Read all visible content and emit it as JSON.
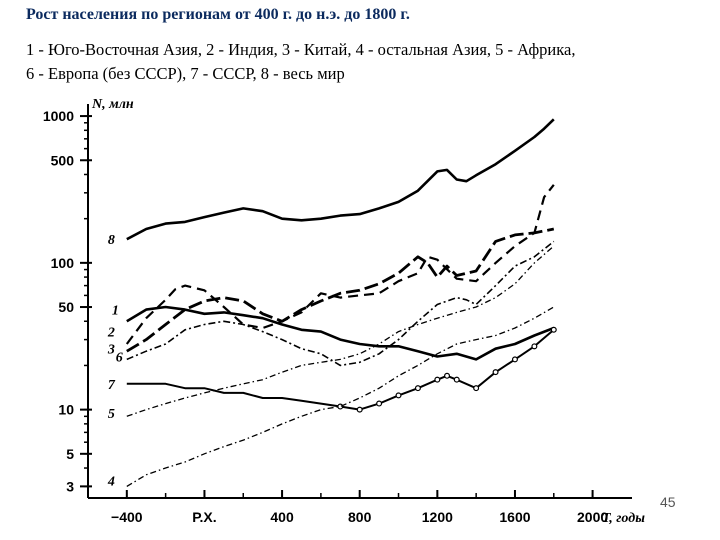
{
  "title": "Рост населения по регионам от 400 г. до н.э. до 1800 г.",
  "legend_lines": [
    "1 - Юго-Восточная Азия, 2 - Индия, 3 - Китай, 4 - остальная Азия, 5 - Африка,",
    "6 - Европа (без СССР), 7 - СССР, 8 - весь мир"
  ],
  "slide_number": "45",
  "chart_data": {
    "type": "line",
    "ylabel": "N, млн",
    "xlabel": "T, годы",
    "y_scale": "log",
    "ylim": [
      2.5,
      1100
    ],
    "xlim": [
      -600,
      2100
    ],
    "y_ticks": [
      {
        "value": 1000,
        "label": "1000"
      },
      {
        "value": 500,
        "label": "500"
      },
      {
        "value": 100,
        "label": "100"
      },
      {
        "value": 50,
        "label": "50"
      },
      {
        "value": 10,
        "label": "10"
      },
      {
        "value": 5,
        "label": "5"
      },
      {
        "value": 3,
        "label": "3"
      }
    ],
    "x_ticks": [
      {
        "value": -400,
        "label": "−400"
      },
      {
        "value": 0,
        "label": "Р.Х."
      },
      {
        "value": 400,
        "label": "400"
      },
      {
        "value": 800,
        "label": "800"
      },
      {
        "value": 1200,
        "label": "1200"
      },
      {
        "value": 1600,
        "label": "1600"
      },
      {
        "value": 2000,
        "label": "2000"
      }
    ],
    "series": [
      {
        "name": "8",
        "label_at": [
          -420,
          145
        ],
        "style": "solid-thick",
        "points": [
          [
            -400,
            145
          ],
          [
            -300,
            170
          ],
          [
            -200,
            185
          ],
          [
            -100,
            190
          ],
          [
            0,
            205
          ],
          [
            100,
            220
          ],
          [
            200,
            235
          ],
          [
            300,
            225
          ],
          [
            400,
            200
          ],
          [
            500,
            195
          ],
          [
            600,
            200
          ],
          [
            700,
            210
          ],
          [
            800,
            215
          ],
          [
            900,
            235
          ],
          [
            1000,
            260
          ],
          [
            1100,
            310
          ],
          [
            1200,
            420
          ],
          [
            1250,
            430
          ],
          [
            1300,
            370
          ],
          [
            1350,
            360
          ],
          [
            1400,
            395
          ],
          [
            1500,
            470
          ],
          [
            1600,
            580
          ],
          [
            1700,
            720
          ],
          [
            1750,
            820
          ],
          [
            1800,
            950
          ]
        ]
      },
      {
        "name": "1",
        "label_at": [
          -400,
          48
        ],
        "style": "solid-thick",
        "points": [
          [
            -400,
            40
          ],
          [
            -300,
            48
          ],
          [
            -200,
            50
          ],
          [
            -100,
            48
          ],
          [
            0,
            45
          ],
          [
            100,
            46
          ],
          [
            200,
            44
          ],
          [
            300,
            42
          ],
          [
            400,
            38
          ],
          [
            500,
            35
          ],
          [
            600,
            34
          ],
          [
            700,
            30
          ],
          [
            800,
            28
          ],
          [
            900,
            27
          ],
          [
            1000,
            27
          ],
          [
            1100,
            25
          ],
          [
            1200,
            23
          ],
          [
            1300,
            24
          ],
          [
            1400,
            22
          ],
          [
            1500,
            26
          ],
          [
            1600,
            28
          ],
          [
            1700,
            32
          ],
          [
            1800,
            36
          ]
        ]
      },
      {
        "name": "2",
        "label_at": [
          -420,
          34
        ],
        "style": "dash",
        "points": [
          [
            -400,
            28
          ],
          [
            -300,
            42
          ],
          [
            -200,
            56
          ],
          [
            -150,
            66
          ],
          [
            -100,
            70
          ],
          [
            0,
            65
          ],
          [
            100,
            50
          ],
          [
            200,
            38
          ],
          [
            300,
            36
          ],
          [
            400,
            40
          ],
          [
            500,
            46
          ],
          [
            600,
            62
          ],
          [
            700,
            58
          ],
          [
            800,
            60
          ],
          [
            900,
            62
          ],
          [
            1000,
            75
          ],
          [
            1100,
            85
          ],
          [
            1150,
            110
          ],
          [
            1200,
            105
          ],
          [
            1300,
            78
          ],
          [
            1400,
            75
          ],
          [
            1500,
            100
          ],
          [
            1600,
            130
          ],
          [
            1700,
            160
          ],
          [
            1750,
            280
          ],
          [
            1800,
            340
          ]
        ]
      },
      {
        "name": "3",
        "label_at": [
          -420,
          26
        ],
        "style": "dash-thick",
        "points": [
          [
            -400,
            25
          ],
          [
            -300,
            30
          ],
          [
            -200,
            38
          ],
          [
            -100,
            48
          ],
          [
            0,
            55
          ],
          [
            100,
            58
          ],
          [
            200,
            55
          ],
          [
            300,
            45
          ],
          [
            400,
            40
          ],
          [
            500,
            48
          ],
          [
            600,
            55
          ],
          [
            700,
            62
          ],
          [
            800,
            65
          ],
          [
            900,
            72
          ],
          [
            1000,
            85
          ],
          [
            1100,
            110
          ],
          [
            1150,
            100
          ],
          [
            1200,
            80
          ],
          [
            1250,
            95
          ],
          [
            1300,
            82
          ],
          [
            1400,
            88
          ],
          [
            1500,
            140
          ],
          [
            1600,
            155
          ],
          [
            1700,
            160
          ],
          [
            1800,
            170
          ]
        ]
      },
      {
        "name": "6",
        "label_at": [
          -380,
          23
        ],
        "style": "dash-dot",
        "points": [
          [
            -400,
            22
          ],
          [
            -300,
            25
          ],
          [
            -200,
            28
          ],
          [
            -100,
            35
          ],
          [
            0,
            38
          ],
          [
            100,
            40
          ],
          [
            200,
            38
          ],
          [
            300,
            34
          ],
          [
            400,
            30
          ],
          [
            500,
            26
          ],
          [
            600,
            24
          ],
          [
            700,
            20
          ],
          [
            800,
            21
          ],
          [
            900,
            24
          ],
          [
            1000,
            30
          ],
          [
            1100,
            40
          ],
          [
            1200,
            52
          ],
          [
            1300,
            58
          ],
          [
            1350,
            56
          ],
          [
            1400,
            52
          ],
          [
            1500,
            70
          ],
          [
            1600,
            95
          ],
          [
            1700,
            110
          ],
          [
            1800,
            140
          ]
        ]
      },
      {
        "name": "7",
        "label_at": [
          -420,
          15
        ],
        "style": "solid-dots",
        "points": [
          [
            -400,
            15
          ],
          [
            -300,
            15
          ],
          [
            -200,
            15
          ],
          [
            -100,
            14
          ],
          [
            0,
            14
          ],
          [
            100,
            13
          ],
          [
            200,
            13
          ],
          [
            300,
            12
          ],
          [
            400,
            12
          ],
          [
            500,
            11.5
          ],
          [
            600,
            11
          ],
          [
            700,
            10.5
          ],
          [
            800,
            10
          ],
          [
            900,
            11
          ],
          [
            1000,
            12.5
          ],
          [
            1100,
            14
          ],
          [
            1200,
            16
          ],
          [
            1250,
            17
          ],
          [
            1300,
            16
          ],
          [
            1400,
            14
          ],
          [
            1500,
            18
          ],
          [
            1600,
            22
          ],
          [
            1700,
            27
          ],
          [
            1800,
            35
          ]
        ]
      },
      {
        "name": "5",
        "label_at": [
          -420,
          9.5
        ],
        "style": "dash-dot-thin",
        "points": [
          [
            -400,
            9
          ],
          [
            -300,
            10
          ],
          [
            -200,
            11
          ],
          [
            -100,
            12
          ],
          [
            0,
            13
          ],
          [
            100,
            14
          ],
          [
            200,
            15
          ],
          [
            300,
            16
          ],
          [
            400,
            18
          ],
          [
            500,
            20
          ],
          [
            600,
            21
          ],
          [
            700,
            22
          ],
          [
            800,
            24
          ],
          [
            900,
            28
          ],
          [
            1000,
            34
          ],
          [
            1100,
            38
          ],
          [
            1200,
            42
          ],
          [
            1300,
            46
          ],
          [
            1400,
            50
          ],
          [
            1500,
            58
          ],
          [
            1600,
            72
          ],
          [
            1700,
            100
          ],
          [
            1800,
            130
          ]
        ]
      },
      {
        "name": "4",
        "label_at": [
          -420,
          3.3
        ],
        "style": "dash-dot-thin",
        "points": [
          [
            -400,
            3
          ],
          [
            -300,
            3.6
          ],
          [
            -200,
            4
          ],
          [
            -100,
            4.4
          ],
          [
            0,
            5
          ],
          [
            100,
            5.6
          ],
          [
            200,
            6.2
          ],
          [
            300,
            7
          ],
          [
            400,
            8
          ],
          [
            500,
            9
          ],
          [
            600,
            10
          ],
          [
            700,
            10.5
          ],
          [
            800,
            12
          ],
          [
            900,
            14
          ],
          [
            1000,
            17
          ],
          [
            1100,
            20
          ],
          [
            1200,
            24
          ],
          [
            1300,
            28
          ],
          [
            1400,
            30
          ],
          [
            1500,
            32
          ],
          [
            1600,
            36
          ],
          [
            1700,
            42
          ],
          [
            1800,
            50
          ]
        ]
      }
    ]
  }
}
